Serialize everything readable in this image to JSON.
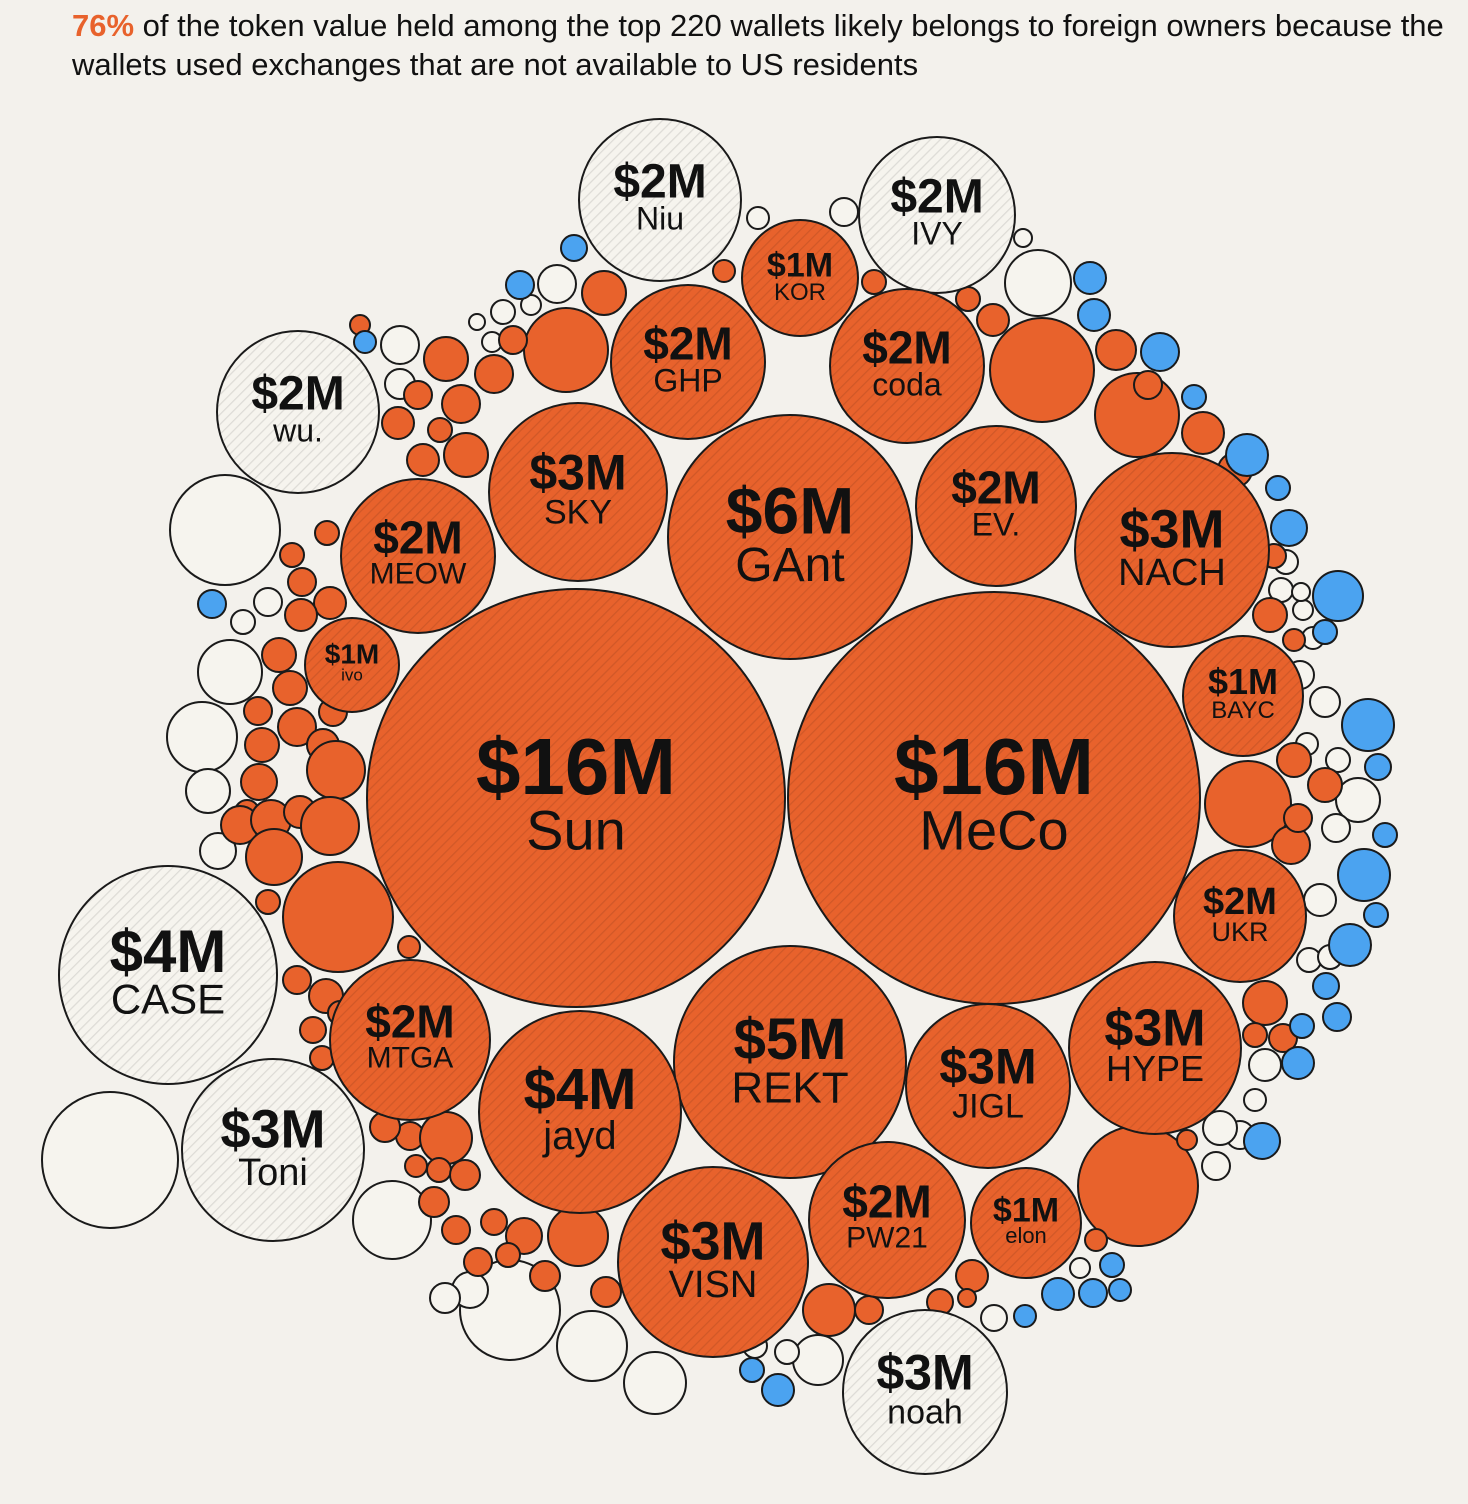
{
  "headline": {
    "highlight": "76%",
    "text": " of the token value held among the top 220 wallets likely belongs to foreign owners because the wallets used exchanges that are not available to US residents"
  },
  "colors": {
    "foreign": "#e8622c",
    "unknown": "#f6f4ee",
    "us_exchange": "#4ba3f0",
    "outline": "#1a1a1a",
    "background": "#f3f1ec"
  },
  "chart_data": {
    "type": "bubble",
    "title": "76% of the token value held among the top 220 wallets likely belongs to foreign owners because the wallets used exchanges that are not available to US residents",
    "unit": "USD millions",
    "labeled_wallets": [
      {
        "label": "$16M",
        "name": "Sun",
        "value": 16,
        "category": "foreign"
      },
      {
        "label": "$16M",
        "name": "MeCo",
        "value": 16,
        "category": "foreign"
      },
      {
        "label": "$6M",
        "name": "GAnt",
        "value": 6,
        "category": "foreign"
      },
      {
        "label": "$5M",
        "name": "REKT",
        "value": 5,
        "category": "foreign"
      },
      {
        "label": "$4M",
        "name": "jayd",
        "value": 4,
        "category": "foreign"
      },
      {
        "label": "$4M",
        "name": "CASE",
        "value": 4,
        "category": "unknown"
      },
      {
        "label": "$3M",
        "name": "SKY",
        "value": 3,
        "category": "foreign"
      },
      {
        "label": "$3M",
        "name": "NACH",
        "value": 3,
        "category": "foreign"
      },
      {
        "label": "$3M",
        "name": "HYPE",
        "value": 3,
        "category": "foreign"
      },
      {
        "label": "$3M",
        "name": "JIGL",
        "value": 3,
        "category": "foreign"
      },
      {
        "label": "$3M",
        "name": "VISN",
        "value": 3,
        "category": "foreign"
      },
      {
        "label": "$3M",
        "name": "Toni",
        "value": 3,
        "category": "unknown"
      },
      {
        "label": "$3M",
        "name": "noah",
        "value": 3,
        "category": "unknown"
      },
      {
        "label": "$2M",
        "name": "Niu",
        "value": 2,
        "category": "unknown"
      },
      {
        "label": "$2M",
        "name": "IVY",
        "value": 2,
        "category": "unknown"
      },
      {
        "label": "$2M",
        "name": "wu.",
        "value": 2,
        "category": "unknown"
      },
      {
        "label": "$2M",
        "name": "GHP",
        "value": 2,
        "category": "foreign"
      },
      {
        "label": "$2M",
        "name": "coda",
        "value": 2,
        "category": "foreign"
      },
      {
        "label": "$2M",
        "name": "EV.",
        "value": 2,
        "category": "foreign"
      },
      {
        "label": "$2M",
        "name": "MEOW",
        "value": 2,
        "category": "foreign"
      },
      {
        "label": "$2M",
        "name": "MTGA",
        "value": 2,
        "category": "foreign"
      },
      {
        "label": "$2M",
        "name": "UKR",
        "value": 2,
        "category": "foreign"
      },
      {
        "label": "$2M",
        "name": "PW21",
        "value": 2,
        "category": "foreign"
      },
      {
        "label": "$1M",
        "name": "KOR",
        "value": 1,
        "category": "foreign"
      },
      {
        "label": "$1M",
        "name": "ivo",
        "value": 1,
        "category": "foreign"
      },
      {
        "label": "$1M",
        "name": "BAYC",
        "value": 1,
        "category": "foreign"
      },
      {
        "label": "$1M",
        "name": "elon",
        "value": 1,
        "category": "foreign"
      }
    ]
  }
}
